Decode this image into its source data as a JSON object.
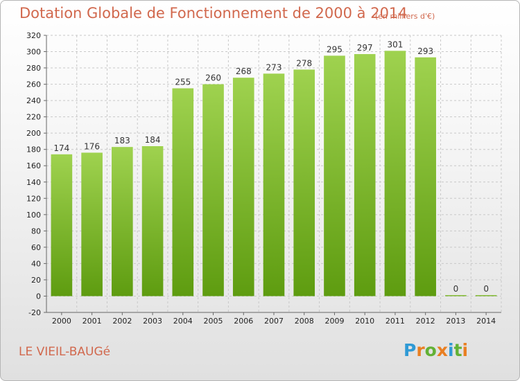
{
  "header": {
    "title": "Dotation Globale de Fonctionnement de 2000 à 2014",
    "unit": "(en milliers d'€)"
  },
  "footer": {
    "commune": "LE VIEIL-BAUGé",
    "brand": "Proxiti"
  },
  "colors": {
    "title": "#d1684d",
    "bar_top": "#9fd24f",
    "bar_bottom": "#5e9c10",
    "grid": "#c8c8c8",
    "logo_letters": [
      "#2f9ad5",
      "#e97f22",
      "#62b135",
      "#e97f22",
      "#2f9ad5",
      "#62b135",
      "#e97f22"
    ]
  },
  "chart_data": {
    "type": "bar",
    "title": "Dotation Globale de Fonctionnement de 2000 à 2014",
    "subtitle": "(en milliers d'€)",
    "xlabel": "",
    "ylabel": "",
    "categories": [
      "2000",
      "2001",
      "2002",
      "2003",
      "2004",
      "2005",
      "2006",
      "2007",
      "2008",
      "2009",
      "2010",
      "2011",
      "2012",
      "2013",
      "2014"
    ],
    "values": [
      174,
      176,
      183,
      184,
      255,
      260,
      268,
      273,
      278,
      295,
      297,
      301,
      293,
      0,
      0
    ],
    "ylim": [
      -20,
      320
    ],
    "yticks": [
      -20,
      0,
      20,
      40,
      60,
      80,
      100,
      120,
      140,
      160,
      180,
      200,
      220,
      240,
      260,
      280,
      300,
      320
    ],
    "grid": true,
    "legend": "none"
  }
}
